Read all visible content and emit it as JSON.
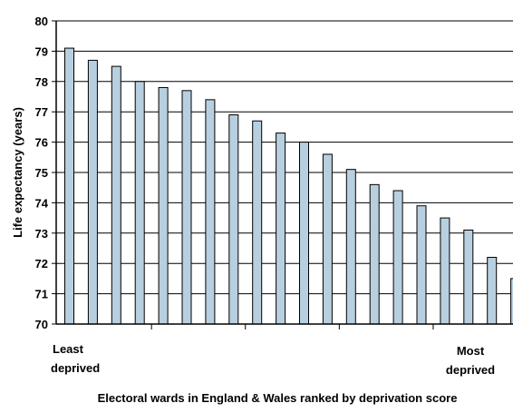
{
  "chart_data": {
    "type": "bar",
    "title": "",
    "xlabel": "Electoral wards in England & Wales ranked by deprivation score",
    "ylabel": "Life expectancy (years)",
    "x_end_labels": {
      "left": [
        "Least",
        "deprived"
      ],
      "right": [
        "Most",
        "deprived"
      ]
    },
    "ylim": [
      70,
      80
    ],
    "yticks": [
      "70",
      "71",
      "72",
      "73",
      "74",
      "75",
      "76",
      "77",
      "78",
      "79",
      "80"
    ],
    "grid": true,
    "legend": "none",
    "bar_color": "#b8cfe0",
    "bar_edge_color": "#000000",
    "values": [
      79.1,
      78.7,
      78.5,
      78.0,
      77.8,
      77.7,
      77.4,
      76.9,
      76.7,
      76.3,
      76.0,
      75.6,
      75.1,
      74.6,
      74.4,
      73.9,
      73.5,
      73.1,
      72.2,
      71.5
    ]
  }
}
